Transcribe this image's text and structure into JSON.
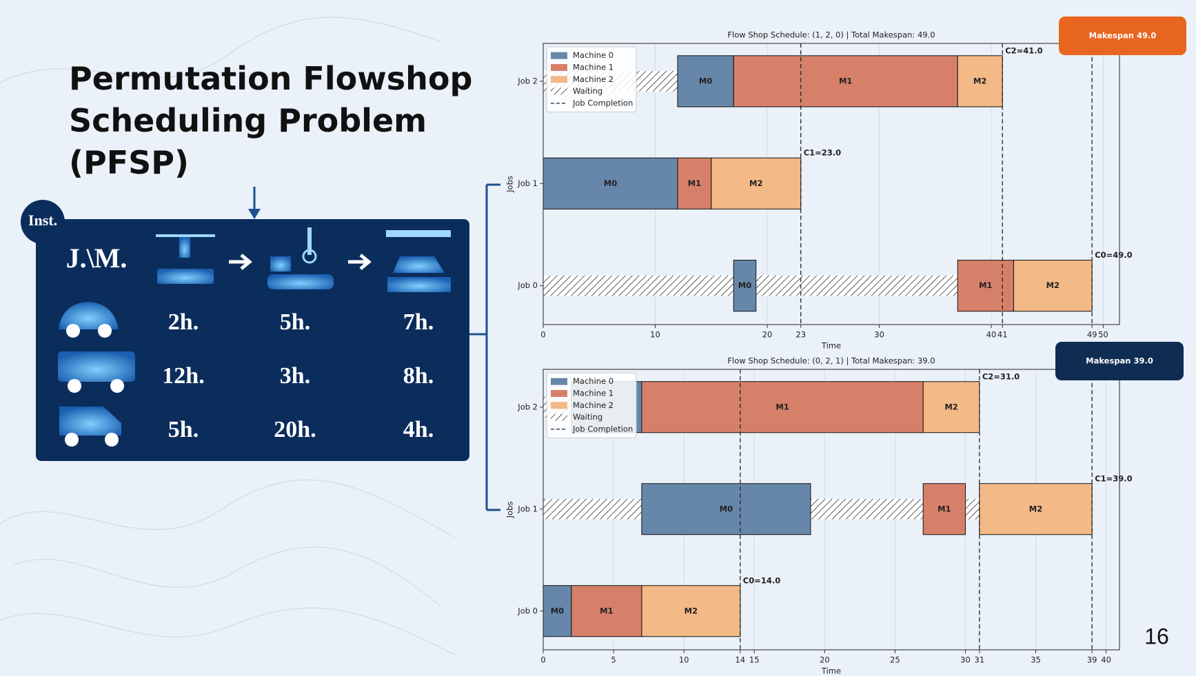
{
  "title": "Permutation Flowshop Scheduling Problem (PFSP)",
  "instance": {
    "badge": "Inst.",
    "corner": "J.\\M.",
    "rows": [
      [
        "2h.",
        "5h.",
        "7h."
      ],
      [
        "12h.",
        "3h.",
        "8h."
      ],
      [
        "5h.",
        "20h.",
        "4h."
      ]
    ]
  },
  "page_number": "16",
  "chart_data": [
    {
      "type": "gantt",
      "title": "Flow Shop Schedule: (1, 2, 0) | Total Makespan: 49.0",
      "badge": "Makespan 49.0",
      "badge_color": "#e8651f",
      "xlabel": "Time",
      "ylabel": "Jobs",
      "categories": [
        "Job 0",
        "Job 1",
        "Job 2"
      ],
      "xlim": [
        0,
        51.45
      ],
      "xticks": [
        0,
        10,
        20,
        23,
        30,
        40,
        41,
        49,
        50
      ],
      "grid": true,
      "legend": "upper left",
      "series": [
        {
          "name": "Machine 0",
          "label": "M0",
          "color": "#6787aa",
          "start": [
            17,
            0,
            12
          ],
          "end": [
            19,
            12,
            17
          ]
        },
        {
          "name": "Machine 1",
          "label": "M1",
          "color": "#d6806a",
          "start": [
            37,
            12,
            17
          ],
          "end": [
            42,
            15,
            37
          ]
        },
        {
          "name": "Machine 2",
          "label": "M2",
          "color": "#f3b987",
          "start": [
            42,
            15,
            37
          ],
          "end": [
            49,
            23,
            41
          ]
        }
      ],
      "waiting": {
        "name": "Waiting",
        "segments": [
          [
            [
              0,
              17
            ],
            [
              19,
              37
            ]
          ],
          [],
          [
            [
              0,
              12
            ]
          ]
        ]
      },
      "completion": {
        "name": "Job Completion",
        "values": [
          49,
          23,
          41
        ],
        "value_labels": [
          "C0=49.0",
          "C1=23.0",
          "C2=41.0"
        ]
      }
    },
    {
      "type": "gantt",
      "title": "Flow Shop Schedule: (0, 2, 1) | Total Makespan: 39.0",
      "badge": "Makespan 39.0",
      "badge_color": "#0f2d52",
      "xlabel": "Time",
      "ylabel": "Jobs",
      "categories": [
        "Job 0",
        "Job 1",
        "Job 2"
      ],
      "xlim": [
        0,
        40.95
      ],
      "xticks": [
        0,
        5,
        10,
        14,
        15,
        20,
        25,
        30,
        31,
        35,
        39,
        40
      ],
      "grid": true,
      "legend": "upper left",
      "series": [
        {
          "name": "Machine 0",
          "label": "M0",
          "color": "#6787aa",
          "start": [
            0,
            7,
            2
          ],
          "end": [
            2,
            19,
            7
          ]
        },
        {
          "name": "Machine 1",
          "label": "M1",
          "color": "#d6806a",
          "start": [
            2,
            27,
            7
          ],
          "end": [
            7,
            30,
            27
          ]
        },
        {
          "name": "Machine 2",
          "label": "M2",
          "color": "#f3b987",
          "start": [
            7,
            31,
            27
          ],
          "end": [
            14,
            39,
            31
          ]
        }
      ],
      "waiting": {
        "name": "Waiting",
        "segments": [
          [],
          [
            [
              0,
              7
            ],
            [
              19,
              27
            ],
            [
              30,
              31
            ]
          ],
          [
            [
              0,
              2
            ]
          ]
        ]
      },
      "completion": {
        "name": "Job Completion",
        "values": [
          14,
          39,
          31
        ],
        "value_labels": [
          "C0=14.0",
          "C1=39.0",
          "C2=31.0"
        ]
      }
    }
  ]
}
